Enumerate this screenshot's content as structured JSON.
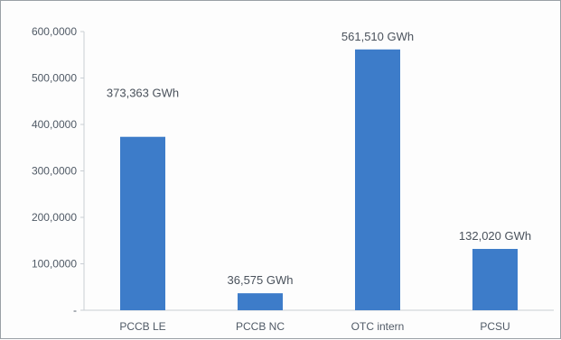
{
  "chart_data": {
    "type": "bar",
    "title": "",
    "xlabel": "",
    "ylabel": "",
    "categories": [
      "PCCB LE",
      "PCCB NC",
      "OTC intern",
      "PCSU"
    ],
    "values": [
      373.363,
      36.575,
      561.51,
      132.02
    ],
    "data_labels": [
      "373,363 GWh",
      "36,575 GWh",
      "561,510 GWh",
      "132,020 GWh"
    ],
    "ylim": [
      0,
      600
    ],
    "y_ticks": [
      0,
      100,
      200,
      300,
      400,
      500,
      600
    ],
    "y_tick_labels": [
      "-",
      "100,0000",
      "200,0000",
      "300,0000",
      "400,0000",
      "500,0000",
      "600,0000"
    ],
    "grid": false,
    "legend": "none",
    "bar_color": "#3d7cc9"
  }
}
